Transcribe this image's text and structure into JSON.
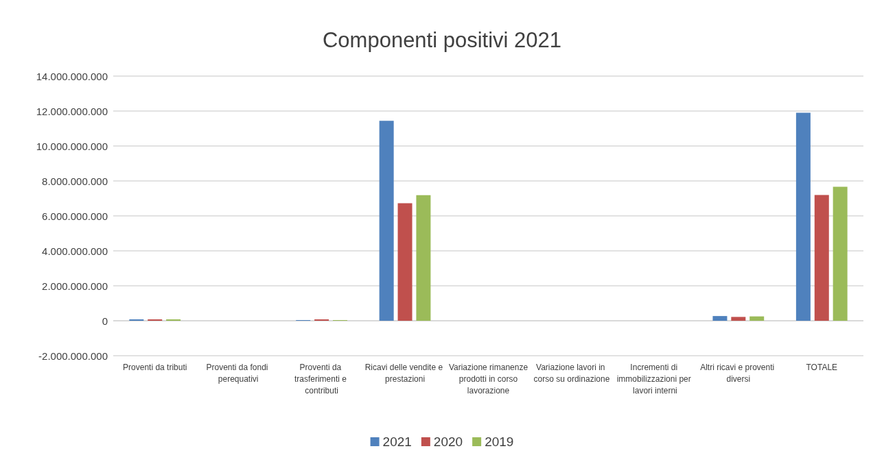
{
  "chart_data": {
    "type": "bar",
    "title": "Componenti positivi 2021",
    "categories": [
      "Proventi da tributi",
      "Proventi da fondi perequativi",
      "Proventi da trasferimenti e contributi",
      "Ricavi delle vendite e prestazioni",
      "Variazione rimanenze prodotti in corso lavorazione",
      "Variazione lavori in corso su ordinazione",
      "Incrementi di immobilizzazioni per lavori interni",
      "Altri ricavi e proventi diversi",
      "TOTALE"
    ],
    "series": [
      {
        "name": "2021",
        "color": "#4f81bd",
        "values": [
          80000000,
          0,
          40000000,
          11440000000,
          0,
          0,
          0,
          270000000,
          11900000000
        ]
      },
      {
        "name": "2020",
        "color": "#c0504d",
        "values": [
          80000000,
          0,
          80000000,
          6730000000,
          0,
          0,
          0,
          220000000,
          7200000000
        ]
      },
      {
        "name": "2019",
        "color": "#9bbb59",
        "values": [
          80000000,
          0,
          40000000,
          7190000000,
          0,
          0,
          0,
          250000000,
          7670000000
        ]
      }
    ],
    "ylim": [
      -2000000000,
      14000000000
    ],
    "yticks": [
      {
        "value": -2000000000,
        "label": "-2.000.000.000"
      },
      {
        "value": 0,
        "label": "0"
      },
      {
        "value": 2000000000,
        "label": "2.000.000.000"
      },
      {
        "value": 4000000000,
        "label": "4.000.000.000"
      },
      {
        "value": 6000000000,
        "label": "6.000.000.000"
      },
      {
        "value": 8000000000,
        "label": "8.000.000.000"
      },
      {
        "value": 10000000000,
        "label": "10.000.000.000"
      },
      {
        "value": 12000000000,
        "label": "12.000.000.000"
      },
      {
        "value": 14000000000,
        "label": "14.000.000.000"
      }
    ],
    "grid": "y",
    "legend": "bottom"
  }
}
